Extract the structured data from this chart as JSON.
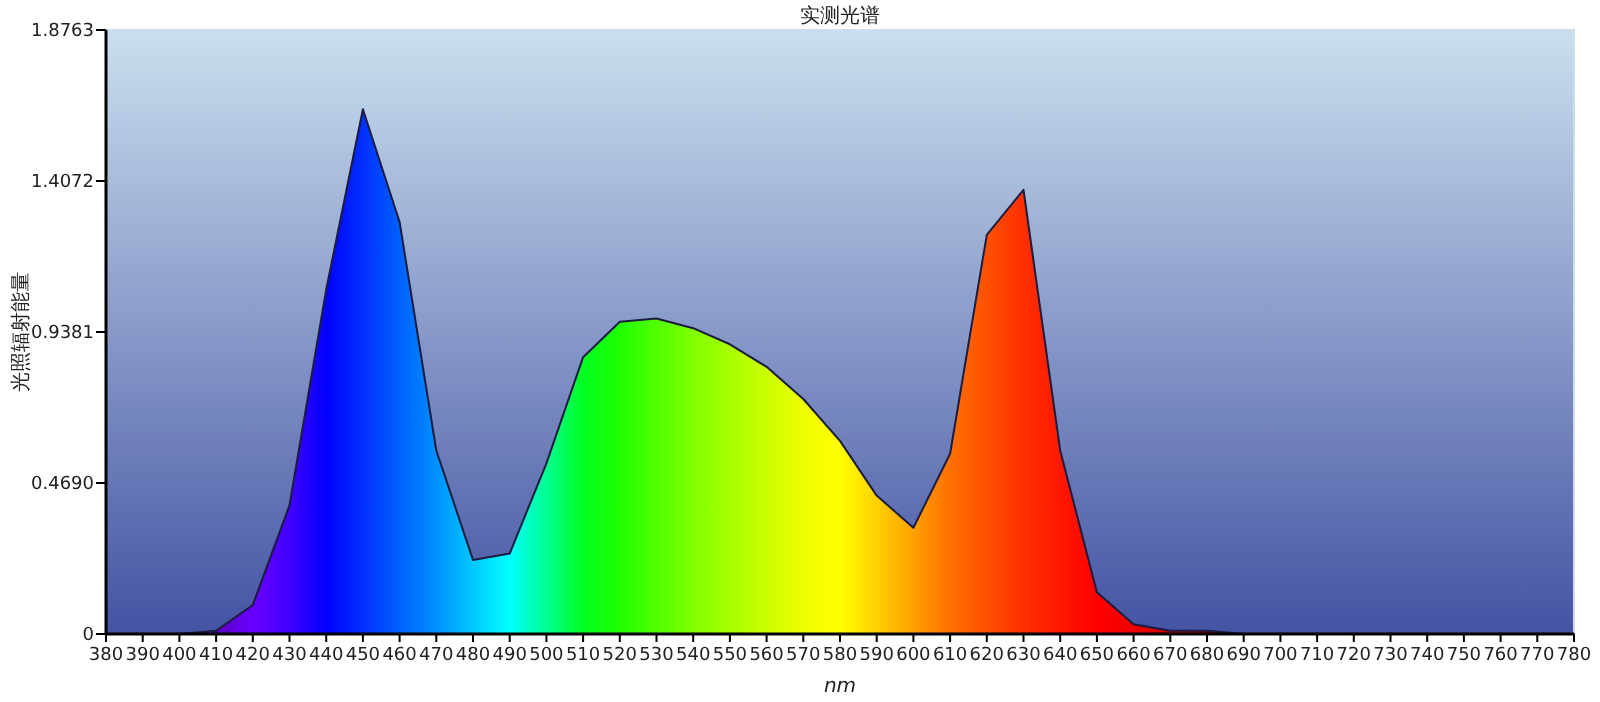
{
  "chart_data": {
    "type": "area",
    "title": "实测光谱",
    "xlabel": "nm",
    "ylabel": "光照辐射能量",
    "x": [
      380,
      390,
      400,
      410,
      420,
      430,
      440,
      450,
      460,
      470,
      480,
      490,
      500,
      510,
      520,
      530,
      540,
      550,
      560,
      570,
      580,
      590,
      600,
      610,
      620,
      630,
      640,
      650,
      660,
      670,
      680,
      690,
      700,
      710,
      720,
      730,
      740,
      750,
      760,
      770,
      780
    ],
    "values": [
      0,
      0,
      0,
      0.01,
      0.09,
      0.4,
      1.07,
      1.63,
      1.28,
      0.57,
      0.23,
      0.25,
      0.53,
      0.86,
      0.97,
      0.98,
      0.95,
      0.9,
      0.83,
      0.73,
      0.6,
      0.43,
      0.33,
      0.56,
      1.24,
      1.38,
      0.57,
      0.13,
      0.03,
      0.01,
      0.01,
      0,
      0,
      0,
      0,
      0,
      0,
      0,
      0,
      0,
      0
    ],
    "colors": [
      "#3a0060",
      "#45007a",
      "#500090",
      "#5a00c0",
      "#6a00ff",
      "#4000ff",
      "#0000ff",
      "#0030ff",
      "#0060ff",
      "#0090ff",
      "#00c8ff",
      "#00ffff",
      "#00ff90",
      "#00ff20",
      "#20ff00",
      "#50ff00",
      "#80ff00",
      "#a8ff00",
      "#ccff00",
      "#eeff00",
      "#ffff00",
      "#ffd000",
      "#ffa000",
      "#ff7000",
      "#ff5000",
      "#ff3000",
      "#ff1800",
      "#ff0000",
      "#f00000",
      "#d00000",
      "#a00000",
      "#800000",
      "#700000",
      "#680000",
      "#600000",
      "#580000",
      "#500000",
      "#500000",
      "#500000",
      "#500000",
      "#500000"
    ],
    "xlim": [
      380,
      780
    ],
    "xticks": [
      380,
      390,
      400,
      410,
      420,
      430,
      440,
      450,
      460,
      470,
      480,
      490,
      500,
      510,
      520,
      530,
      540,
      550,
      560,
      570,
      580,
      590,
      600,
      610,
      620,
      630,
      640,
      650,
      660,
      670,
      680,
      690,
      700,
      710,
      720,
      730,
      740,
      750,
      760,
      770,
      780
    ],
    "ylim": [
      0,
      1.8763
    ],
    "yticks": [
      0,
      {
        "value": 0.469,
        "label": "0.4690"
      },
      0.9381,
      1.4072,
      1.8763
    ]
  }
}
